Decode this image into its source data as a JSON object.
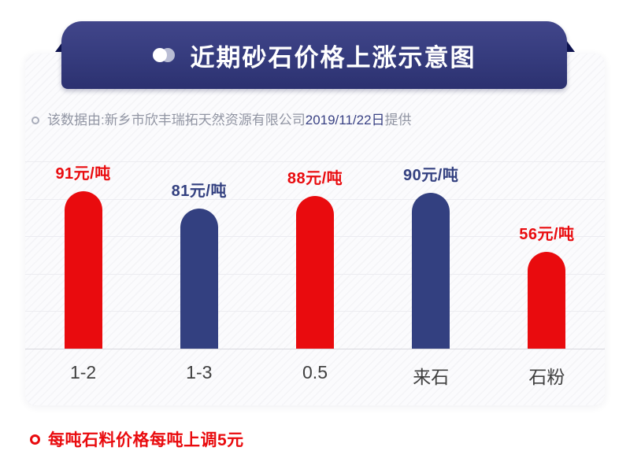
{
  "header": {
    "title": "近期砂石价格上涨示意图"
  },
  "source_note": {
    "prefix": "该数据由:新乡市欣丰瑞拓天然资源有限公司",
    "date": "2019/11/22日",
    "suffix": "提供"
  },
  "chart_data": {
    "type": "bar",
    "title": "近期砂石价格上涨示意图",
    "categories": [
      "1-2",
      "1-3",
      "0.5",
      "来石",
      "石粉"
    ],
    "values": [
      91,
      81,
      88,
      90,
      56
    ],
    "value_labels": [
      "91元/吨",
      "81元/吨",
      "88元/吨",
      "90元/吨",
      "56元/吨"
    ],
    "bar_colors": [
      "#e90b0e",
      "#334080",
      "#e90b0e",
      "#334080",
      "#e90b0e"
    ],
    "unit": "元/吨",
    "xlabel": "",
    "ylabel": "",
    "grid": true,
    "legend": "none"
  },
  "footer": {
    "note": "每吨石料价格每吨上调5元"
  },
  "colors": {
    "red": "#e90b0e",
    "navy": "#334080",
    "banner": "#353b7d",
    "banner_fold": "#0f1450",
    "grid_line": "#ececf1",
    "baseline": "#d8d8de",
    "category_text": "#404040",
    "note_text": "#9195a3",
    "note_date_text": "#3a4284"
  }
}
